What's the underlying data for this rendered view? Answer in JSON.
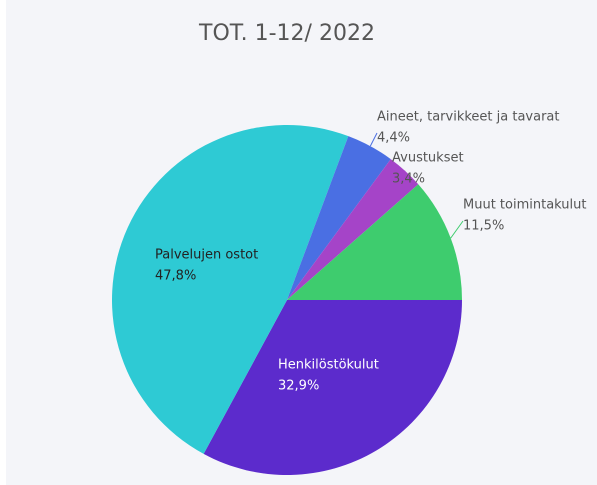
{
  "chart_data": {
    "type": "pie",
    "title": "TOT. 1-12/ 2022",
    "categories": [
      "Henkilöstökulut",
      "Palvelujen ostot",
      "Aineet, tarvikkeet ja tavarat",
      "Avustukset",
      "Muut toimintakulut"
    ],
    "values": [
      32.9,
      47.8,
      4.4,
      3.4,
      11.5
    ],
    "value_labels": [
      "32,9%",
      "47,8%",
      "4,4%",
      "3,4%",
      "11,5%"
    ],
    "colors": [
      "#5c2bcc",
      "#2ecad4",
      "#4a6fe3",
      "#a544c8",
      "#3ecc6e"
    ]
  }
}
